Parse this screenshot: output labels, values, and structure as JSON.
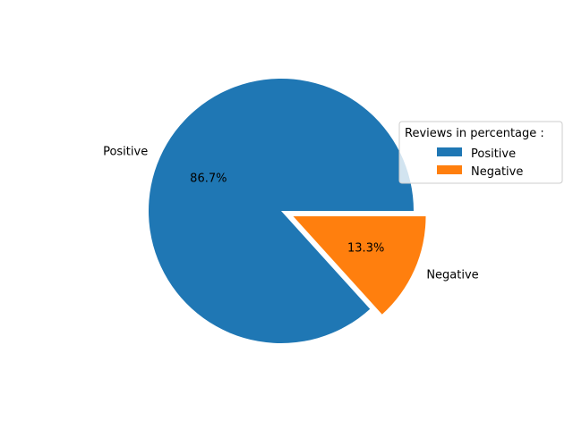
{
  "chart_data": {
    "type": "pie",
    "title": "",
    "slices": [
      {
        "label": "Positive",
        "value": 86.7,
        "pct_label": "86.7%",
        "color": "#1f77b4",
        "explode": 0
      },
      {
        "label": "Negative",
        "value": 13.3,
        "pct_label": "13.3%",
        "color": "#ff7f0e",
        "explode": 0.1
      }
    ],
    "legend": {
      "title": "Reviews in percentage :",
      "placement": "right",
      "entries": [
        "Positive",
        "Negative"
      ]
    }
  }
}
